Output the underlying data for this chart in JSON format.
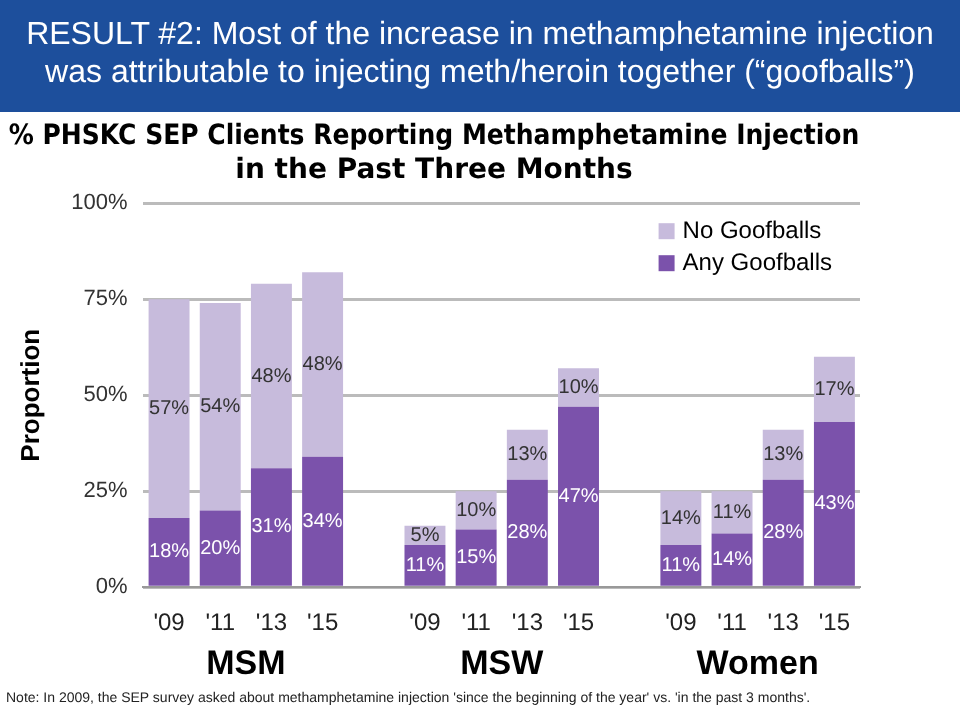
{
  "chart_data": {
    "type": "bar",
    "stacked": true,
    "title": "RESULT #2: Most of the increase in methamphetamine injection was attributable to injecting meth/heroin together (“goofballs”)",
    "subtitle": "% PHSKC SEP Clients Reporting Methamphetamine Injection in the Past Three Months",
    "ylabel": "Proportion",
    "categories": [
      "'09",
      "'11",
      "'13",
      "'15",
      null,
      "'09",
      "'11",
      "'13",
      "'15",
      null,
      "'09",
      "'11",
      "'13",
      "'15"
    ],
    "series": [
      {
        "name": "Any Goofballs",
        "color": "#7b52ab",
        "values": [
          18,
          20,
          31,
          34,
          null,
          11,
          15,
          28,
          47,
          null,
          11,
          14,
          28,
          43
        ],
        "value_labels": [
          "18%",
          "20%",
          "31%",
          "34%",
          null,
          "11%",
          "15%",
          "28%",
          "47%",
          null,
          "11%",
          "14%",
          "28%",
          "43%"
        ]
      },
      {
        "name": "No Goofballs",
        "color": "#c7bbdc",
        "values": [
          57,
          54,
          48,
          48,
          null,
          5,
          10,
          13,
          10,
          null,
          14,
          11,
          13,
          17
        ],
        "value_labels": [
          "57%",
          "54%",
          "48%",
          "48%",
          null,
          "5%",
          "10%",
          "13%",
          "10%",
          null,
          "14%",
          "11%",
          "13%",
          "17%"
        ]
      }
    ],
    "ylim": [
      0,
      100
    ],
    "yticks": [
      {
        "value": 0,
        "label": "0%"
      },
      {
        "value": 25,
        "label": "25%"
      },
      {
        "value": 50,
        "label": "50%"
      },
      {
        "value": 75,
        "label": "75%"
      },
      {
        "value": 100,
        "label": "100%"
      }
    ],
    "grid": "y",
    "legend": "top right",
    "annotations": [
      "MSM",
      "MSW",
      "Women",
      "Note: In 2009, the SEP survey asked about methamphetamine injection 'since the beginning of the year' vs. 'in the past 3 months'."
    ]
  }
}
